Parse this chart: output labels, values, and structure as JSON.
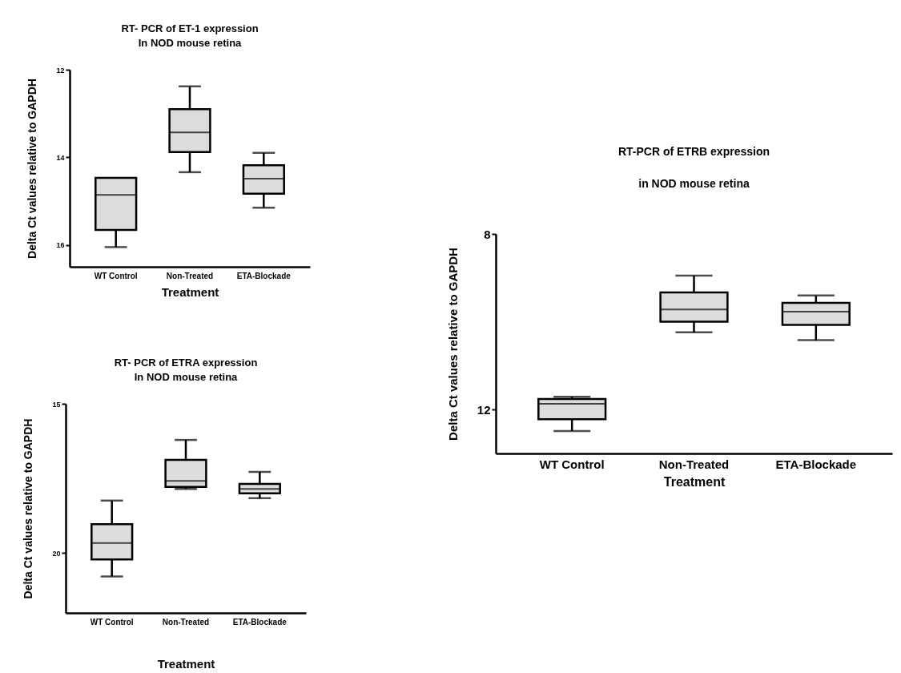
{
  "chart_data": [
    {
      "type": "box",
      "title": "RT- PCR of ET-1 expression\nIn NOD mouse retina",
      "xlabel": "Treatment",
      "ylabel": "Delta Ct values relative to GAPDH",
      "categories": [
        "WT Control",
        "Non-Treated",
        "ETA-Blockade"
      ],
      "ylim": [
        16.5,
        12
      ],
      "yticks": [
        12,
        14,
        16
      ],
      "boxes": [
        {
          "low": 14.47,
          "q1": 14.47,
          "median": 14.86,
          "q3": 15.66,
          "high": 16.05
        },
        {
          "low": 12.38,
          "q1": 12.9,
          "median": 13.43,
          "q3": 13.88,
          "high": 14.34
        },
        {
          "low": 13.9,
          "q1": 14.18,
          "median": 14.49,
          "q3": 14.83,
          "high": 15.15
        }
      ]
    },
    {
      "type": "box",
      "title": "RT- PCR of ETRA expression\nIn NOD mouse retina",
      "xlabel": "Treatment",
      "ylabel": "Delta Ct values relative to GAPDH",
      "categories": [
        "WT Control",
        "Non-Treated",
        "ETA-Blockade"
      ],
      "ylim": [
        22,
        15
      ],
      "yticks": [
        15,
        20
      ],
      "boxes": [
        {
          "low": 18.24,
          "q1": 19.03,
          "median": 19.66,
          "q3": 20.21,
          "high": 20.78
        },
        {
          "low": 16.21,
          "q1": 16.88,
          "median": 17.58,
          "q3": 17.78,
          "high": 17.85
        },
        {
          "low": 17.28,
          "q1": 17.68,
          "median": 17.85,
          "q3": 18.0,
          "high": 18.16
        }
      ]
    },
    {
      "type": "box",
      "title": "RT-PCR of ETRB expression\nin NOD mouse retina",
      "xlabel": "Treatment",
      "ylabel": "Delta Ct values relative to GAPDH",
      "categories": [
        "WT Control",
        "Non-Treated",
        "ETA-Blockade"
      ],
      "ylim": [
        13,
        8
      ],
      "yticks": [
        8,
        12
      ],
      "boxes": [
        {
          "low": 11.71,
          "q1": 11.76,
          "median": 11.87,
          "q3": 12.22,
          "high": 12.49
        },
        {
          "low": 8.95,
          "q1": 9.33,
          "median": 9.72,
          "q3": 10.0,
          "high": 10.24
        },
        {
          "low": 9.4,
          "q1": 9.57,
          "median": 9.77,
          "q3": 10.07,
          "high": 10.42
        }
      ]
    }
  ]
}
